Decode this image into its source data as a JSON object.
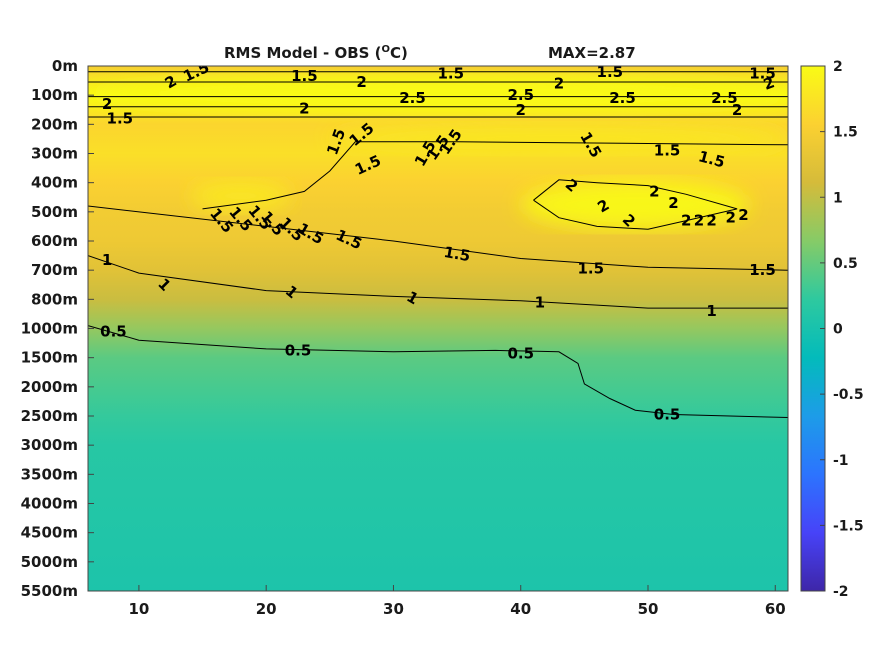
{
  "chart_data": {
    "type": "heatmap",
    "title": "RMS Model - OBS (",
    "title_unit_sup": "O",
    "title_unit": "C)",
    "max_label": "MAX=2.87",
    "x_ticks": [
      10,
      20,
      30,
      40,
      50,
      60
    ],
    "xlim": [
      6,
      61
    ],
    "depth_ticks": [
      "0m",
      "100m",
      "200m",
      "300m",
      "400m",
      "500m",
      "600m",
      "700m",
      "800m",
      "1000m",
      "1500m",
      "2000m",
      "2500m",
      "3000m",
      "3500m",
      "4000m",
      "4500m",
      "5000m",
      "5500m"
    ],
    "colorbar": {
      "range": [
        -2,
        2
      ],
      "ticks": [
        "2",
        "1.5",
        "1",
        "0.5",
        "0",
        "-0.5",
        "-1",
        "-1.5",
        "-2"
      ],
      "colormap": [
        "#3e26a8",
        "#4743f8",
        "#2c74fe",
        "#1d9ce8",
        "#03bbbb",
        "#2ec99f",
        "#86cb67",
        "#d5bb3a",
        "#fbd131",
        "#f9fb15"
      ]
    },
    "field_profile": [
      {
        "depth": "0m",
        "value": 1.5
      },
      {
        "depth": "100m",
        "value": 2.1
      },
      {
        "depth": "200m",
        "value": 1.6
      },
      {
        "depth": "300m",
        "value": 1.7
      },
      {
        "depth": "400m",
        "value": 1.55
      },
      {
        "depth": "500m",
        "value": 1.45
      },
      {
        "depth": "600m",
        "value": 1.4
      },
      {
        "depth": "700m",
        "value": 1.25
      },
      {
        "depth": "800m",
        "value": 1.05
      },
      {
        "depth": "1000m",
        "value": 0.75
      },
      {
        "depth": "1500m",
        "value": 0.45
      },
      {
        "depth": "2000m",
        "value": 0.35
      },
      {
        "depth": "2500m",
        "value": 0.25
      },
      {
        "depth": "3000m",
        "value": 0.15
      },
      {
        "depth": "5500m",
        "value": 0.05
      }
    ],
    "contours": [
      {
        "level": 1.5,
        "points": [
          [
            6,
            0.2
          ],
          [
            61,
            0.2
          ]
        ]
      },
      {
        "level": 2,
        "points": [
          [
            6,
            0.55
          ],
          [
            61,
            0.55
          ]
        ]
      },
      {
        "level": 2.5,
        "points": [
          [
            6,
            1.05
          ],
          [
            61,
            1.05
          ]
        ]
      },
      {
        "level": 2,
        "points": [
          [
            6,
            1.4
          ],
          [
            61,
            1.4
          ]
        ]
      },
      {
        "level": 1.5,
        "points": [
          [
            6,
            1.75
          ],
          [
            61,
            1.75
          ]
        ]
      },
      {
        "level": 1.5,
        "points": [
          [
            15,
            4.9
          ],
          [
            20,
            4.6
          ],
          [
            23,
            4.3
          ],
          [
            25,
            3.6
          ],
          [
            27,
            2.6
          ],
          [
            31,
            2.6
          ],
          [
            35,
            2.6
          ],
          [
            61,
            2.7
          ]
        ]
      },
      {
        "level": 1.5,
        "points": [
          [
            6,
            4.8
          ],
          [
            20,
            5.5
          ],
          [
            30,
            6.0
          ],
          [
            40,
            6.6
          ],
          [
            50,
            6.9
          ],
          [
            61,
            7.0
          ]
        ]
      },
      {
        "level": 1,
        "points": [
          [
            6,
            6.5
          ],
          [
            10,
            7.1
          ],
          [
            20,
            7.7
          ],
          [
            30,
            7.9
          ],
          [
            40,
            8.05
          ],
          [
            50,
            8.3
          ],
          [
            61,
            8.3
          ]
        ]
      },
      {
        "level": 0.5,
        "points": [
          [
            6,
            8.9
          ],
          [
            10,
            9.4
          ],
          [
            20,
            9.7
          ],
          [
            30,
            9.8
          ],
          [
            38,
            9.75
          ],
          [
            43,
            9.8
          ],
          [
            44.5,
            10.2
          ],
          [
            45,
            10.9
          ],
          [
            47,
            11.4
          ],
          [
            49,
            11.8
          ],
          [
            52,
            11.95
          ],
          [
            61,
            12.05
          ]
        ]
      },
      {
        "level": 2,
        "points": [
          [
            41,
            4.6
          ],
          [
            43,
            3.9
          ],
          [
            46,
            4.0
          ],
          [
            50,
            4.1
          ],
          [
            53,
            4.4
          ],
          [
            57,
            4.9
          ],
          [
            53,
            5.3
          ],
          [
            50,
            5.6
          ],
          [
            46,
            5.5
          ],
          [
            43,
            5.2
          ],
          [
            41,
            4.6
          ]
        ]
      }
    ],
    "contour_labels": [
      {
        "text": "1.5",
        "x": 14.5,
        "depth": 0.2,
        "rotate": -25
      },
      {
        "text": "1.5",
        "x": 23,
        "depth": 0.35,
        "rotate": 0
      },
      {
        "text": "1.5",
        "x": 34.5,
        "depth": 0.25,
        "rotate": 0
      },
      {
        "text": "1.5",
        "x": 47,
        "depth": 0.2,
        "rotate": 0
      },
      {
        "text": "1.5",
        "x": 59,
        "depth": 0.25,
        "rotate": 0
      },
      {
        "text": "2",
        "x": 12.5,
        "depth": 0.55,
        "rotate": -30
      },
      {
        "text": "2",
        "x": 27.5,
        "depth": 0.55,
        "rotate": 0
      },
      {
        "text": "2",
        "x": 43,
        "depth": 0.6,
        "rotate": 0
      },
      {
        "text": "2",
        "x": 59.5,
        "depth": 0.6,
        "rotate": -20
      },
      {
        "text": "2.5",
        "x": 31.5,
        "depth": 1.1,
        "rotate": 0
      },
      {
        "text": "2.5",
        "x": 40,
        "depth": 1.0,
        "rotate": 0
      },
      {
        "text": "2.5",
        "x": 48,
        "depth": 1.1,
        "rotate": 0
      },
      {
        "text": "2.5",
        "x": 56,
        "depth": 1.1,
        "rotate": 0
      },
      {
        "text": "2",
        "x": 7.5,
        "depth": 1.3,
        "rotate": 0
      },
      {
        "text": "2",
        "x": 23,
        "depth": 1.45,
        "rotate": 0
      },
      {
        "text": "2",
        "x": 40,
        "depth": 1.5,
        "rotate": 0
      },
      {
        "text": "2",
        "x": 57,
        "depth": 1.5,
        "rotate": 0
      },
      {
        "text": "1.5",
        "x": 8.5,
        "depth": 1.8,
        "rotate": 0
      },
      {
        "text": "1.5",
        "x": 25.5,
        "depth": 2.6,
        "rotate": -70
      },
      {
        "text": "1.5",
        "x": 27.5,
        "depth": 2.35,
        "rotate": -40
      },
      {
        "text": "1.5",
        "x": 28,
        "depth": 3.4,
        "rotate": -25
      },
      {
        "text": "1.5",
        "x": 32.5,
        "depth": 3.0,
        "rotate": -60
      },
      {
        "text": "1.5",
        "x": 33.5,
        "depth": 2.8,
        "rotate": -55
      },
      {
        "text": "1.5",
        "x": 34.5,
        "depth": 2.6,
        "rotate": -55
      },
      {
        "text": "1.5",
        "x": 45.5,
        "depth": 2.7,
        "rotate": 60
      },
      {
        "text": "1.5",
        "x": 51.5,
        "depth": 2.9,
        "rotate": 0
      },
      {
        "text": "1.5",
        "x": 55,
        "depth": 3.2,
        "rotate": 15
      },
      {
        "text": "1.5",
        "x": 16.5,
        "depth": 5.3,
        "rotate": 50
      },
      {
        "text": "1.5",
        "x": 18,
        "depth": 5.25,
        "rotate": 50
      },
      {
        "text": "1.5",
        "x": 19.5,
        "depth": 5.2,
        "rotate": 50
      },
      {
        "text": "1.5",
        "x": 20.5,
        "depth": 5.4,
        "rotate": 50
      },
      {
        "text": "1.5",
        "x": 22,
        "depth": 5.6,
        "rotate": 45
      },
      {
        "text": "1.5",
        "x": 23.5,
        "depth": 5.75,
        "rotate": 30
      },
      {
        "text": "1.5",
        "x": 26.5,
        "depth": 5.95,
        "rotate": 25
      },
      {
        "text": "1.5",
        "x": 35,
        "depth": 6.45,
        "rotate": 10
      },
      {
        "text": "1.5",
        "x": 45.5,
        "depth": 6.95,
        "rotate": 0
      },
      {
        "text": "1.5",
        "x": 59,
        "depth": 7.0,
        "rotate": 0
      },
      {
        "text": "1",
        "x": 7.5,
        "depth": 6.65,
        "rotate": 0
      },
      {
        "text": "1",
        "x": 12,
        "depth": 7.5,
        "rotate": 45
      },
      {
        "text": "1",
        "x": 22,
        "depth": 7.75,
        "rotate": 40
      },
      {
        "text": "1",
        "x": 31.5,
        "depth": 7.95,
        "rotate": 30
      },
      {
        "text": "1",
        "x": 41.5,
        "depth": 8.1,
        "rotate": 0
      },
      {
        "text": "1",
        "x": 55,
        "depth": 8.4,
        "rotate": 0
      },
      {
        "text": "0.5",
        "x": 8,
        "depth": 9.1,
        "rotate": 0
      },
      {
        "text": "0.5",
        "x": 22.5,
        "depth": 9.75,
        "rotate": 0
      },
      {
        "text": "0.5",
        "x": 40,
        "depth": 9.85,
        "rotate": 0
      },
      {
        "text": "0.5",
        "x": 51.5,
        "depth": 11.95,
        "rotate": 0
      },
      {
        "text": "2",
        "x": 44,
        "depth": 4.1,
        "rotate": 40
      },
      {
        "text": "2",
        "x": 46.5,
        "depth": 4.8,
        "rotate": -30
      },
      {
        "text": "2",
        "x": 48.5,
        "depth": 5.3,
        "rotate": 45
      },
      {
        "text": "2",
        "x": 50.5,
        "depth": 4.3,
        "rotate": 0
      },
      {
        "text": "2",
        "x": 52,
        "depth": 4.7,
        "rotate": 0
      },
      {
        "text": "2",
        "x": 53,
        "depth": 5.3,
        "rotate": 0
      },
      {
        "text": "2",
        "x": 54,
        "depth": 5.3,
        "rotate": 0
      },
      {
        "text": "2",
        "x": 55,
        "depth": 5.3,
        "rotate": 0
      },
      {
        "text": "2",
        "x": 56.5,
        "depth": 5.2,
        "rotate": 0
      },
      {
        "text": "2",
        "x": 57.5,
        "depth": 5.1,
        "rotate": 0
      }
    ],
    "blobs": [
      {
        "name": "upper-yellow-band",
        "x0": 6,
        "x1": 61,
        "d0": 0.3,
        "d1": 1.6,
        "value": 2.2
      },
      {
        "name": "right-yellow-patch",
        "x0": 40,
        "x1": 58,
        "d0": 3.9,
        "d1": 5.6,
        "value": 2.2
      },
      {
        "name": "mid-yellow-strip",
        "x0": 25,
        "x1": 61,
        "d0": 2.0,
        "d1": 3.0,
        "value": 1.8
      },
      {
        "name": "left-yellow-patch",
        "x0": 14,
        "x1": 22,
        "d0": 3.9,
        "d1": 5.0,
        "value": 1.8
      }
    ]
  }
}
